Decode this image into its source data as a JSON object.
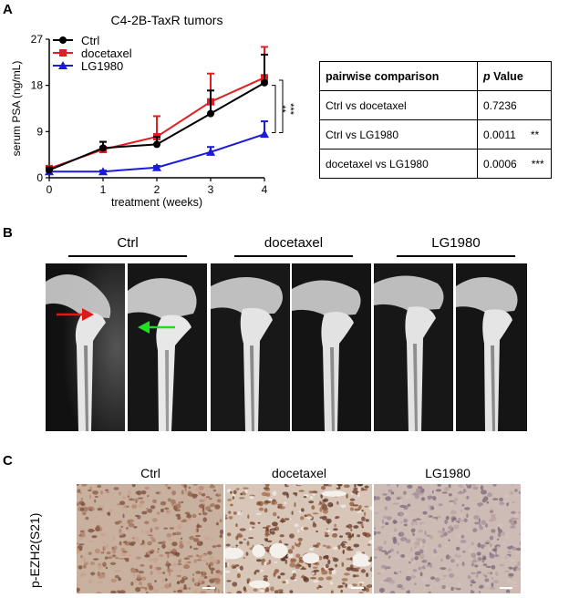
{
  "panels": {
    "a": "A",
    "b": "B",
    "c": "C"
  },
  "chart_data": {
    "type": "line",
    "title": "C4-2B-TaxR tumors",
    "xlabel": "treatment (weeks)",
    "ylabel": "serum PSA (ng/mL)",
    "x": [
      0,
      1,
      2,
      3,
      4
    ],
    "xticks": [
      "0",
      "1",
      "2",
      "3",
      "4"
    ],
    "yticks": [
      "0",
      "9",
      "18",
      "27"
    ],
    "xlim": [
      0,
      4
    ],
    "ylim": [
      0,
      27
    ],
    "series": [
      {
        "name": "Ctrl",
        "color": "#000000",
        "marker": "circle",
        "values": [
          1.5,
          5.8,
          6.5,
          12.5,
          18.5
        ],
        "errors": [
          0.5,
          1.2,
          1.5,
          4.5,
          5.5
        ]
      },
      {
        "name": "docetaxel",
        "color": "#e02020",
        "marker": "square",
        "values": [
          1.8,
          5.5,
          8.0,
          14.8,
          19.5
        ],
        "errors": [
          0.5,
          1.5,
          4.0,
          5.5,
          6.0
        ]
      },
      {
        "name": "LG1980",
        "color": "#1a1adc",
        "marker": "triangle",
        "values": [
          1.2,
          1.2,
          2.0,
          5.0,
          8.5
        ],
        "errors": [
          0.2,
          0.2,
          0.3,
          1.0,
          2.5
        ]
      }
    ],
    "significance": [
      "**",
      "***"
    ]
  },
  "table": {
    "headers": [
      "pairwise comparison",
      "p Value"
    ],
    "header_italic": "p",
    "header_rest": " Value",
    "rows": [
      {
        "comparison": "Ctrl  vs  docetaxel",
        "p": "0.7236",
        "sig": ""
      },
      {
        "comparison": "Ctrl  vs LG1980",
        "p": "0.0011",
        "sig": "**"
      },
      {
        "comparison": "docetaxel vs LG1980",
        "p": "0.0006",
        "sig": "***"
      }
    ]
  },
  "xray": {
    "groups": [
      "Ctrl",
      "docetaxel",
      "LG1980"
    ]
  },
  "ihc": {
    "groups": [
      "Ctrl",
      "docetaxel",
      "LG1980"
    ],
    "row_label": "p-EZH2(S21)"
  },
  "colors": {
    "arrow_red": "#e01818",
    "arrow_green": "#22dd22"
  }
}
